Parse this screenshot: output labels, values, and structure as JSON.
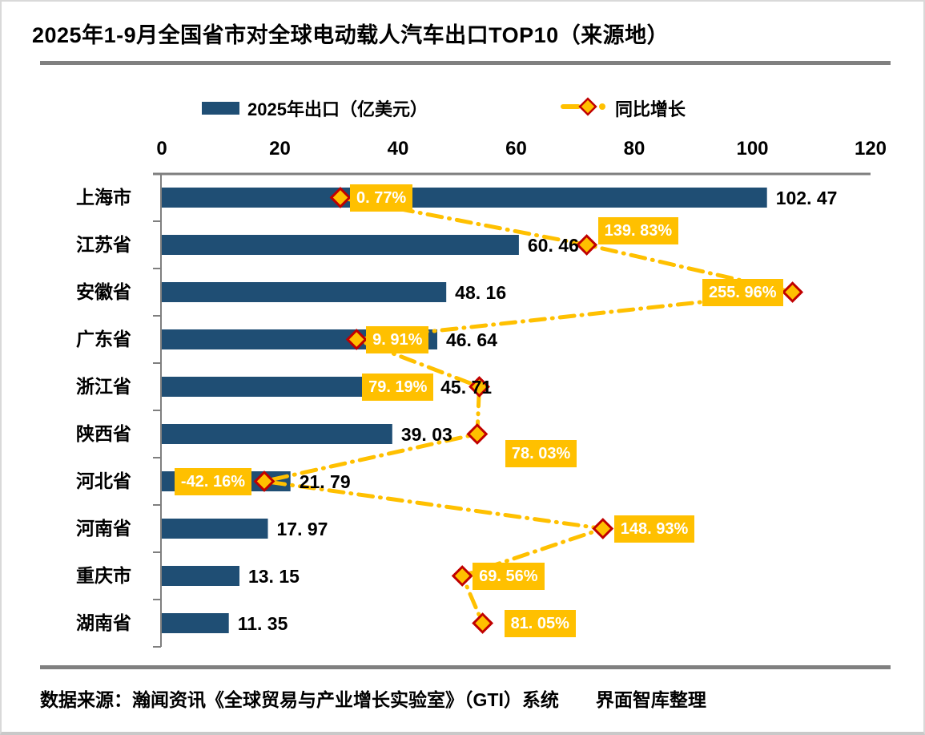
{
  "page": {
    "title": "2025年1-9月全国省市对全球电动载人汽车出口TOP10（来源地）"
  },
  "legend": {
    "bar_label": "2025年出口（亿美元）",
    "line_label": "同比增长"
  },
  "footer": {
    "source": "数据来源：瀚闻资讯《全球贸易与产业增长实验室》（GTI）系统　　界面智库整理"
  },
  "colors": {
    "bar": "#1F4E74",
    "accent": "#FFC000",
    "marker_border": "#C00000",
    "axis": "#7F7F7F",
    "rule": "#808080",
    "growth_label_text": "#FFFFFF"
  },
  "chart_data": {
    "type": "bar",
    "orientation": "horizontal",
    "title": "2025年1-9月全国省市对全球电动载人汽车出口TOP10（来源地）",
    "categories": [
      "上海市",
      "江苏省",
      "安徽省",
      "广东省",
      "浙江省",
      "陕西省",
      "河北省",
      "河南省",
      "重庆市",
      "湖南省"
    ],
    "series": [
      {
        "name": "2025年出口（亿美元）",
        "type": "bar",
        "values": [
          102.47,
          60.46,
          48.16,
          46.64,
          45.71,
          39.03,
          21.79,
          17.97,
          13.15,
          11.35
        ]
      },
      {
        "name": "同比增长",
        "type": "line",
        "unit": "%",
        "values": [
          0.77,
          139.83,
          255.96,
          9.91,
          79.19,
          78.03,
          -42.16,
          148.93,
          69.56,
          81.05
        ]
      }
    ],
    "x_axis": {
      "ticks": [
        0,
        20,
        40,
        60,
        80,
        100,
        120
      ],
      "min": 0,
      "max": 120,
      "position": "top"
    },
    "secondary_axis": {
      "min": -100,
      "max": 300,
      "visible": false,
      "unit": "%"
    },
    "legend_position": "top",
    "grid": false,
    "value_label_decimals": 2,
    "growth_label_decimals": 2
  }
}
